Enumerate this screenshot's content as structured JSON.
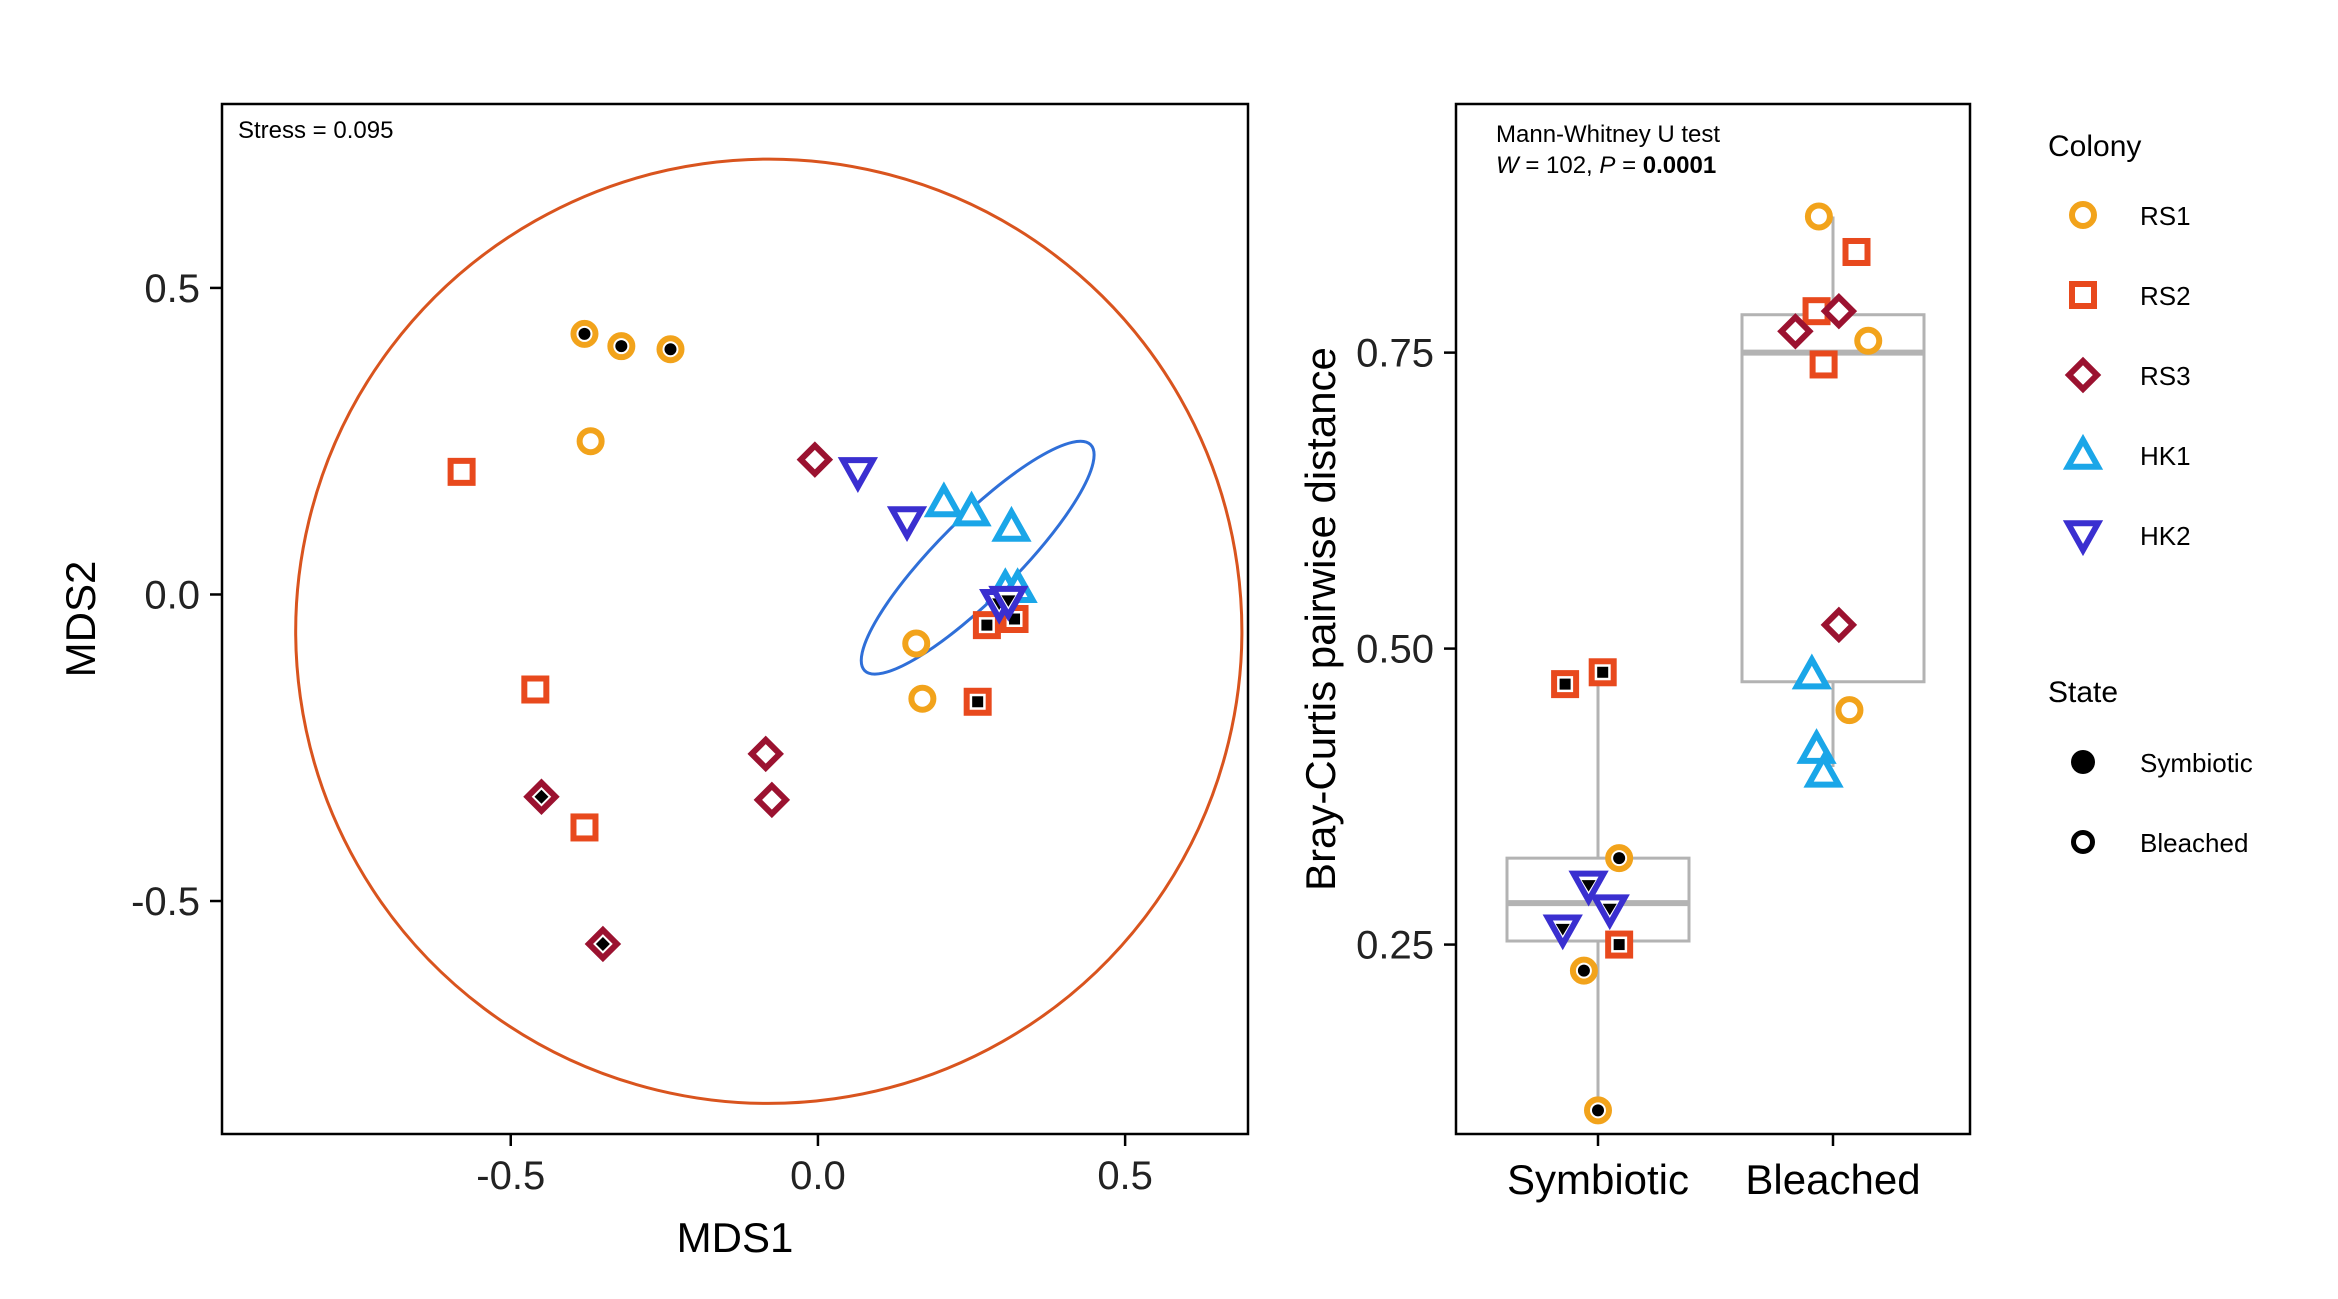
{
  "chart_data": [
    {
      "type": "scatter",
      "xlabel": "MDS1",
      "ylabel": "MDS2",
      "xlim": [
        -0.97,
        0.7
      ],
      "ylim": [
        -0.88,
        0.8
      ],
      "xticks": [
        -0.5,
        0.0,
        0.5
      ],
      "xtick_labels": [
        "-0.5",
        "0.0",
        "0.5"
      ],
      "yticks": [
        0.5,
        0.0,
        -0.5
      ],
      "ytick_labels": [
        "0.5",
        "0.0",
        "-0.5"
      ],
      "annotation": "Stress = 0.095",
      "grid": false,
      "ellipses": [
        {
          "group": "Bleached",
          "color": "#d9541e",
          "cx": -0.08,
          "cy": -0.06,
          "rx": 0.77,
          "ry": 0.77,
          "angle": -8
        },
        {
          "group": "Symbiotic",
          "color": "#2f6fd8",
          "cx": 0.26,
          "cy": 0.06,
          "rx": 0.26,
          "ry": 0.065,
          "angle": -45
        }
      ],
      "points": [
        {
          "colony": "RS1",
          "state": "Symbiotic",
          "x": -0.38,
          "y": 0.425
        },
        {
          "colony": "RS1",
          "state": "Symbiotic",
          "x": -0.32,
          "y": 0.405
        },
        {
          "colony": "RS1",
          "state": "Symbiotic",
          "x": -0.24,
          "y": 0.4
        },
        {
          "colony": "RS1",
          "state": "Bleached",
          "x": -0.37,
          "y": 0.25
        },
        {
          "colony": "RS1",
          "state": "Bleached",
          "x": 0.16,
          "y": -0.08
        },
        {
          "colony": "RS1",
          "state": "Bleached",
          "x": 0.17,
          "y": -0.17
        },
        {
          "colony": "RS2",
          "state": "Bleached",
          "x": -0.58,
          "y": 0.2
        },
        {
          "colony": "RS2",
          "state": "Bleached",
          "x": -0.46,
          "y": -0.155
        },
        {
          "colony": "RS2",
          "state": "Bleached",
          "x": -0.38,
          "y": -0.38
        },
        {
          "colony": "RS2",
          "state": "Symbiotic",
          "x": 0.26,
          "y": -0.175
        },
        {
          "colony": "RS2",
          "state": "Symbiotic",
          "x": 0.275,
          "y": -0.05
        },
        {
          "colony": "RS2",
          "state": "Symbiotic",
          "x": 0.32,
          "y": -0.04
        },
        {
          "colony": "RS3",
          "state": "Bleached",
          "x": -0.005,
          "y": 0.22
        },
        {
          "colony": "RS3",
          "state": "Bleached",
          "x": -0.085,
          "y": -0.26
        },
        {
          "colony": "RS3",
          "state": "Bleached",
          "x": -0.075,
          "y": -0.335
        },
        {
          "colony": "RS3",
          "state": "Symbiotic",
          "x": -0.45,
          "y": -0.33
        },
        {
          "colony": "RS3",
          "state": "Symbiotic",
          "x": -0.35,
          "y": -0.57
        },
        {
          "colony": "HK1",
          "state": "Bleached",
          "x": 0.205,
          "y": 0.15
        },
        {
          "colony": "HK1",
          "state": "Bleached",
          "x": 0.25,
          "y": 0.135
        },
        {
          "colony": "HK1",
          "state": "Bleached",
          "x": 0.315,
          "y": 0.11
        },
        {
          "colony": "HK1",
          "state": "Bleached",
          "x": 0.305,
          "y": 0.01
        },
        {
          "colony": "HK1",
          "state": "Bleached",
          "x": 0.325,
          "y": 0.01
        },
        {
          "colony": "HK2",
          "state": "Bleached",
          "x": 0.065,
          "y": 0.2
        },
        {
          "colony": "HK2",
          "state": "Bleached",
          "x": 0.145,
          "y": 0.12
        },
        {
          "colony": "HK2",
          "state": "Symbiotic",
          "x": 0.295,
          "y": -0.015
        },
        {
          "colony": "HK2",
          "state": "Symbiotic",
          "x": 0.31,
          "y": -0.01
        }
      ]
    },
    {
      "type": "box",
      "xlabel": "",
      "ylabel": "Bray-Curtis pairwise distance",
      "categories": [
        "Symbiotic",
        "Bleached"
      ],
      "ylim": [
        0.09,
        0.96
      ],
      "yticks": [
        0.75,
        0.5,
        0.25
      ],
      "ytick_labels": [
        "0.75",
        "0.50",
        "0.25"
      ],
      "annotation_title": "Mann-Whitney U test",
      "annotation_stat": {
        "w_label": "W",
        "w_text": " = 102, ",
        "p_label": "P",
        "p_eq": " = ",
        "p_value": "0.0001"
      },
      "boxes": [
        {
          "category": "Symbiotic",
          "q1": 0.253,
          "median": 0.285,
          "q3": 0.323,
          "whisker_low": 0.11,
          "whisker_high": 0.48
        },
        {
          "category": "Bleached",
          "q1": 0.472,
          "median": 0.75,
          "q3": 0.782,
          "whisker_low": 0.4,
          "whisker_high": 0.865
        }
      ],
      "points": [
        {
          "category": "Symbiotic",
          "colony": "RS2",
          "state": "Symbiotic",
          "x": -0.14,
          "y": 0.47
        },
        {
          "category": "Symbiotic",
          "colony": "RS2",
          "state": "Symbiotic",
          "x": 0.02,
          "y": 0.48
        },
        {
          "category": "Symbiotic",
          "colony": "RS1",
          "state": "Symbiotic",
          "x": 0.09,
          "y": 0.323
        },
        {
          "category": "Symbiotic",
          "colony": "HK2",
          "state": "Symbiotic",
          "x": -0.04,
          "y": 0.3
        },
        {
          "category": "Symbiotic",
          "colony": "HK2",
          "state": "Symbiotic",
          "x": 0.05,
          "y": 0.28
        },
        {
          "category": "Symbiotic",
          "colony": "HK2",
          "state": "Symbiotic",
          "x": -0.15,
          "y": 0.263
        },
        {
          "category": "Symbiotic",
          "colony": "RS2",
          "state": "Symbiotic",
          "x": 0.09,
          "y": 0.25
        },
        {
          "category": "Symbiotic",
          "colony": "RS1",
          "state": "Symbiotic",
          "x": -0.06,
          "y": 0.228
        },
        {
          "category": "Symbiotic",
          "colony": "RS1",
          "state": "Symbiotic",
          "x": 0.0,
          "y": 0.11
        },
        {
          "category": "Bleached",
          "colony": "RS1",
          "state": "Bleached",
          "x": -0.06,
          "y": 0.865
        },
        {
          "category": "Bleached",
          "colony": "RS2",
          "state": "Bleached",
          "x": 0.1,
          "y": 0.835
        },
        {
          "category": "Bleached",
          "colony": "RS2",
          "state": "Bleached",
          "x": -0.07,
          "y": 0.785
        },
        {
          "category": "Bleached",
          "colony": "RS3",
          "state": "Bleached",
          "x": 0.025,
          "y": 0.785
        },
        {
          "category": "Bleached",
          "colony": "RS3",
          "state": "Bleached",
          "x": -0.16,
          "y": 0.768
        },
        {
          "category": "Bleached",
          "colony": "RS1",
          "state": "Bleached",
          "x": 0.15,
          "y": 0.76
        },
        {
          "category": "Bleached",
          "colony": "RS2",
          "state": "Bleached",
          "x": -0.04,
          "y": 0.74
        },
        {
          "category": "Bleached",
          "colony": "RS3",
          "state": "Bleached",
          "x": 0.025,
          "y": 0.52
        },
        {
          "category": "Bleached",
          "colony": "HK1",
          "state": "Bleached",
          "x": -0.09,
          "y": 0.478
        },
        {
          "category": "Bleached",
          "colony": "RS1",
          "state": "Bleached",
          "x": 0.07,
          "y": 0.448
        },
        {
          "category": "Bleached",
          "colony": "HK1",
          "state": "Bleached",
          "x": -0.07,
          "y": 0.415
        },
        {
          "category": "Bleached",
          "colony": "HK1",
          "state": "Bleached",
          "x": -0.04,
          "y": 0.395
        }
      ]
    }
  ],
  "legend": {
    "placement": "right",
    "colony_title": "Colony",
    "colonies": [
      {
        "name": "RS1",
        "shape": "circle",
        "color": "#f2a31b"
      },
      {
        "name": "RS2",
        "shape": "square",
        "color": "#e8491d"
      },
      {
        "name": "RS3",
        "shape": "diamond",
        "color": "#9b1230"
      },
      {
        "name": "HK1",
        "shape": "triangle-up",
        "color": "#1aa6e8"
      },
      {
        "name": "HK2",
        "shape": "triangle-down",
        "color": "#3a2fd0"
      }
    ],
    "state_title": "State",
    "states": [
      {
        "name": "Symbiotic",
        "fill": "filled"
      },
      {
        "name": "Bleached",
        "fill": "open"
      }
    ]
  },
  "colors": {
    "box_line": "#b3b3b3",
    "axis": "#000000",
    "tick_text": "#222222"
  }
}
